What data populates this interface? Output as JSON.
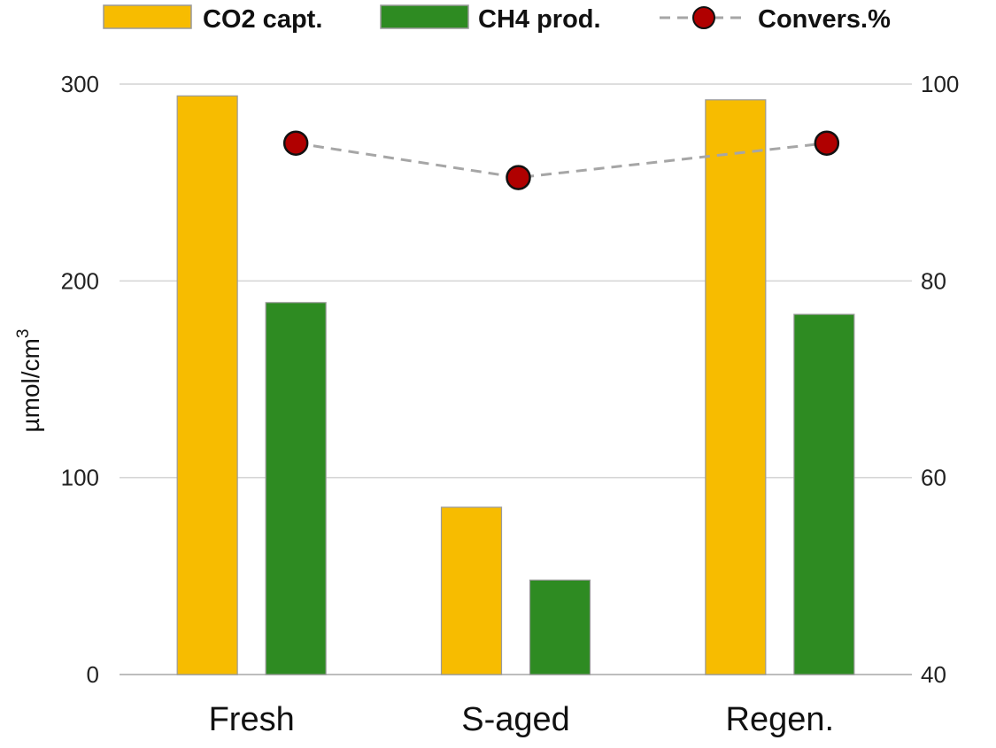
{
  "chart_data": {
    "type": "bar",
    "categories": [
      "Fresh",
      "S-aged",
      "Regen."
    ],
    "series": [
      {
        "name": "CO2 capt.",
        "kind": "bar",
        "axis": "left",
        "color": "#F7BC00",
        "values": [
          294,
          85,
          292
        ]
      },
      {
        "name": "CH4 prod.",
        "kind": "bar",
        "axis": "left",
        "color": "#2E8B22",
        "values": [
          189,
          48,
          183
        ]
      },
      {
        "name": "Convers.%",
        "kind": "line",
        "axis": "right",
        "color": "#B00000",
        "line_color": "#A6A6A6",
        "line_style": "dashed",
        "values": [
          94,
          90.5,
          94
        ]
      }
    ],
    "ylabel": "µmol/cm",
    "ylabel_superscript": "3",
    "ylim": [
      0,
      300
    ],
    "y_ticks": [
      "0",
      "100",
      "200",
      "300"
    ],
    "y2lim": [
      40,
      100
    ],
    "y2_ticks": [
      "40",
      "60",
      "80",
      "100"
    ],
    "grid": true,
    "legend": {
      "position": "top",
      "entries": [
        "CO2 capt.",
        "CH4 prod.",
        "Convers.%"
      ]
    }
  }
}
